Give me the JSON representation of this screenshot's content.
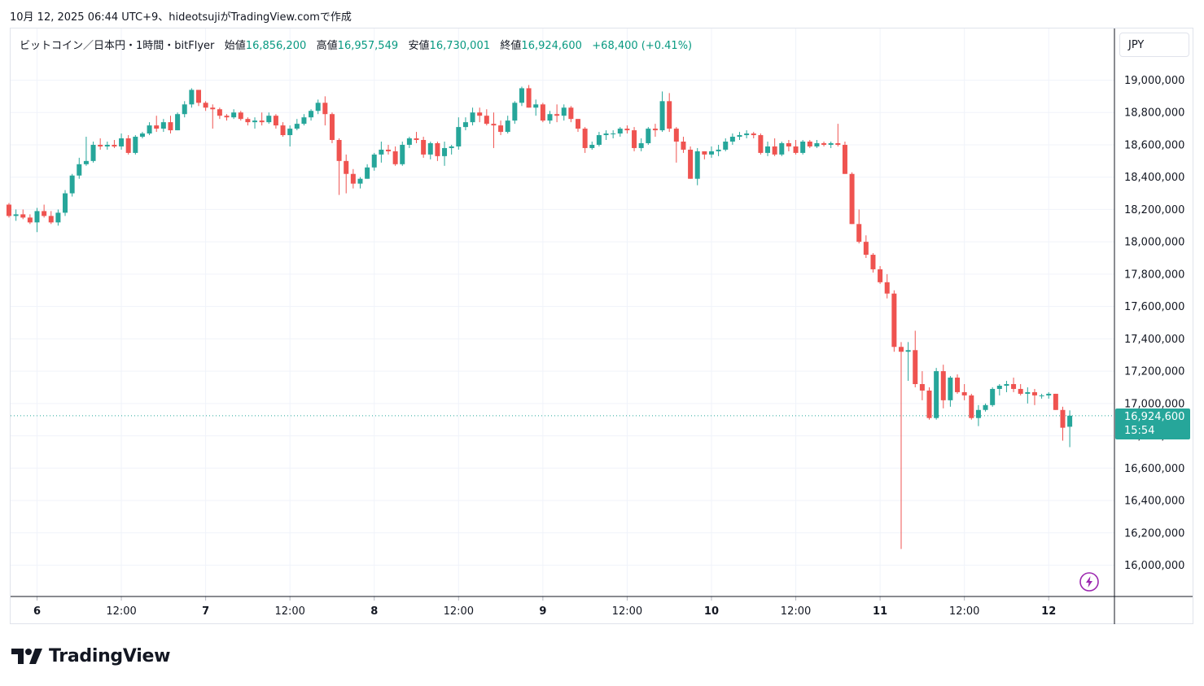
{
  "caption": "10月 12, 2025 06:44 UTC+9、hideotsujiがTradingView.comで作成",
  "legend": {
    "symbol": "ビットコイン／日本円・1時間・bitFlyer",
    "open_label": "始値",
    "open_value": "16,856,200",
    "high_label": "高値",
    "high_value": "16,957,549",
    "low_label": "安値",
    "low_value": "16,730,001",
    "close_label": "終値",
    "close_value": "16,924,600",
    "change": "+68,400 (+0.41%)"
  },
  "currency": "JPY",
  "price_badge": {
    "price": "16,924,600",
    "countdown": "15:54"
  },
  "brand": "TradingView",
  "colors": {
    "up": "#26a69a",
    "down": "#ef5350",
    "grid": "#f0f3fa",
    "text": "#131722",
    "legend_value": "#089981",
    "bolt": "#9c27b0"
  },
  "icons": {
    "logo": "tradingview-logo-icon",
    "bolt": "lightning-bolt-icon"
  },
  "chart_data": {
    "type": "candlestick",
    "timeframe": "1時間",
    "exchange": "bitFlyer",
    "currency": "JPY",
    "ylim": [
      15900000,
      19200000
    ],
    "y_ticks": [
      16000000,
      16200000,
      16400000,
      16600000,
      16800000,
      17000000,
      17200000,
      17400000,
      17600000,
      17800000,
      18000000,
      18200000,
      18400000,
      18600000,
      18800000,
      19000000
    ],
    "y_tick_labels": [
      "16,000,000",
      "16,200,000",
      "16,400,000",
      "16,600,000",
      "16,800,000",
      "17,000,000",
      "17,200,000",
      "17,400,000",
      "17,600,000",
      "17,800,000",
      "18,000,000",
      "18,200,000",
      "18,400,000",
      "18,600,000",
      "18,800,000",
      "19,000,000"
    ],
    "x_ticks": [
      {
        "hour": 0,
        "label": "6"
      },
      {
        "hour": 12,
        "label": "12:00"
      },
      {
        "hour": 24,
        "label": "7"
      },
      {
        "hour": 36,
        "label": "12:00"
      },
      {
        "hour": 48,
        "label": "8"
      },
      {
        "hour": 60,
        "label": "12:00"
      },
      {
        "hour": 72,
        "label": "9"
      },
      {
        "hour": 84,
        "label": "12:00"
      },
      {
        "hour": 96,
        "label": "10"
      },
      {
        "hour": 108,
        "label": "12:00"
      },
      {
        "hour": 120,
        "label": "11"
      },
      {
        "hour": 132,
        "label": "12:00"
      },
      {
        "hour": 144,
        "label": "12"
      }
    ],
    "first_candle_hour": -4,
    "last_price": 16924600,
    "candles": [
      [
        18230000,
        18240000,
        18150000,
        18160000
      ],
      [
        18160000,
        18200000,
        18130000,
        18170000
      ],
      [
        18170000,
        18200000,
        18140000,
        18150000
      ],
      [
        18150000,
        18170000,
        18110000,
        18120000
      ],
      [
        18120000,
        18210000,
        18060000,
        18190000
      ],
      [
        18190000,
        18230000,
        18150000,
        18160000
      ],
      [
        18160000,
        18190000,
        18110000,
        18120000
      ],
      [
        18120000,
        18200000,
        18100000,
        18180000
      ],
      [
        18180000,
        18320000,
        18160000,
        18300000
      ],
      [
        18300000,
        18420000,
        18280000,
        18410000
      ],
      [
        18410000,
        18520000,
        18390000,
        18480000
      ],
      [
        18480000,
        18650000,
        18470000,
        18500000
      ],
      [
        18500000,
        18620000,
        18490000,
        18600000
      ],
      [
        18600000,
        18640000,
        18570000,
        18590000
      ],
      [
        18590000,
        18620000,
        18570000,
        18600000
      ],
      [
        18600000,
        18630000,
        18580000,
        18590000
      ],
      [
        18590000,
        18670000,
        18570000,
        18640000
      ],
      [
        18640000,
        18660000,
        18540000,
        18550000
      ],
      [
        18550000,
        18660000,
        18540000,
        18650000
      ],
      [
        18650000,
        18680000,
        18640000,
        18670000
      ],
      [
        18670000,
        18740000,
        18660000,
        18720000
      ],
      [
        18720000,
        18780000,
        18680000,
        18700000
      ],
      [
        18700000,
        18760000,
        18680000,
        18740000
      ],
      [
        18740000,
        18780000,
        18670000,
        18690000
      ],
      [
        18690000,
        18800000,
        18690000,
        18790000
      ],
      [
        18790000,
        18870000,
        18770000,
        18850000
      ],
      [
        18850000,
        18950000,
        18830000,
        18940000
      ],
      [
        18940000,
        18930000,
        18840000,
        18860000
      ],
      [
        18860000,
        18870000,
        18810000,
        18830000
      ],
      [
        18830000,
        18850000,
        18700000,
        18820000
      ],
      [
        18820000,
        18830000,
        18760000,
        18780000
      ],
      [
        18780000,
        18790000,
        18750000,
        18770000
      ],
      [
        18770000,
        18820000,
        18760000,
        18800000
      ],
      [
        18800000,
        18810000,
        18750000,
        18760000
      ],
      [
        18760000,
        18770000,
        18720000,
        18740000
      ],
      [
        18740000,
        18770000,
        18700000,
        18750000
      ],
      [
        18750000,
        18800000,
        18720000,
        18740000
      ],
      [
        18740000,
        18800000,
        18730000,
        18780000
      ],
      [
        18780000,
        18790000,
        18700000,
        18720000
      ],
      [
        18720000,
        18740000,
        18650000,
        18660000
      ],
      [
        18660000,
        18720000,
        18590000,
        18700000
      ],
      [
        18700000,
        18760000,
        18690000,
        18730000
      ],
      [
        18730000,
        18790000,
        18720000,
        18770000
      ],
      [
        18770000,
        18820000,
        18750000,
        18810000
      ],
      [
        18810000,
        18880000,
        18790000,
        18860000
      ],
      [
        18860000,
        18900000,
        18720000,
        18790000
      ],
      [
        18790000,
        18800000,
        18610000,
        18630000
      ],
      [
        18630000,
        18640000,
        18290000,
        18500000
      ],
      [
        18500000,
        18540000,
        18300000,
        18420000
      ],
      [
        18420000,
        18450000,
        18330000,
        18360000
      ],
      [
        18360000,
        18400000,
        18330000,
        18390000
      ],
      [
        18390000,
        18480000,
        18390000,
        18460000
      ],
      [
        18460000,
        18550000,
        18440000,
        18540000
      ],
      [
        18540000,
        18620000,
        18490000,
        18570000
      ],
      [
        18570000,
        18600000,
        18540000,
        18560000
      ],
      [
        18560000,
        18590000,
        18470000,
        18480000
      ],
      [
        18480000,
        18620000,
        18470000,
        18600000
      ],
      [
        18600000,
        18650000,
        18580000,
        18640000
      ],
      [
        18640000,
        18680000,
        18610000,
        18630000
      ],
      [
        18630000,
        18650000,
        18520000,
        18540000
      ],
      [
        18540000,
        18620000,
        18510000,
        18610000
      ],
      [
        18610000,
        18620000,
        18500000,
        18530000
      ],
      [
        18530000,
        18620000,
        18470000,
        18580000
      ],
      [
        18580000,
        18600000,
        18540000,
        18590000
      ],
      [
        18590000,
        18770000,
        18570000,
        18710000
      ],
      [
        18710000,
        18770000,
        18690000,
        18740000
      ],
      [
        18740000,
        18830000,
        18720000,
        18800000
      ],
      [
        18800000,
        18830000,
        18740000,
        18780000
      ],
      [
        18780000,
        18820000,
        18720000,
        18730000
      ],
      [
        18730000,
        18800000,
        18580000,
        18720000
      ],
      [
        18720000,
        18750000,
        18660000,
        18680000
      ],
      [
        18680000,
        18780000,
        18670000,
        18750000
      ],
      [
        18750000,
        18870000,
        18730000,
        18860000
      ],
      [
        18860000,
        18960000,
        18840000,
        18950000
      ],
      [
        18950000,
        18970000,
        18830000,
        18830000
      ],
      [
        18830000,
        18880000,
        18780000,
        18850000
      ],
      [
        18850000,
        18860000,
        18740000,
        18750000
      ],
      [
        18750000,
        18810000,
        18730000,
        18790000
      ],
      [
        18790000,
        18850000,
        18740000,
        18780000
      ],
      [
        18780000,
        18850000,
        18750000,
        18830000
      ],
      [
        18830000,
        18840000,
        18740000,
        18760000
      ],
      [
        18760000,
        18760000,
        18680000,
        18700000
      ],
      [
        18700000,
        18710000,
        18550000,
        18580000
      ],
      [
        18580000,
        18620000,
        18570000,
        18600000
      ],
      [
        18600000,
        18680000,
        18590000,
        18660000
      ],
      [
        18660000,
        18690000,
        18630000,
        18670000
      ],
      [
        18670000,
        18690000,
        18640000,
        18670000
      ],
      [
        18670000,
        18710000,
        18650000,
        18700000
      ],
      [
        18700000,
        18720000,
        18670000,
        18690000
      ],
      [
        18690000,
        18710000,
        18560000,
        18580000
      ],
      [
        18580000,
        18640000,
        18560000,
        18610000
      ],
      [
        18610000,
        18710000,
        18600000,
        18700000
      ],
      [
        18700000,
        18730000,
        18650000,
        18690000
      ],
      [
        18690000,
        18930000,
        18680000,
        18870000
      ],
      [
        18870000,
        18920000,
        18680000,
        18700000
      ],
      [
        18700000,
        18710000,
        18490000,
        18620000
      ],
      [
        18620000,
        18650000,
        18550000,
        18570000
      ],
      [
        18570000,
        18590000,
        18390000,
        18390000
      ],
      [
        18390000,
        18580000,
        18350000,
        18560000
      ],
      [
        18560000,
        18560000,
        18510000,
        18540000
      ],
      [
        18540000,
        18590000,
        18520000,
        18560000
      ],
      [
        18560000,
        18600000,
        18530000,
        18570000
      ],
      [
        18570000,
        18640000,
        18560000,
        18620000
      ],
      [
        18620000,
        18670000,
        18600000,
        18650000
      ],
      [
        18650000,
        18680000,
        18630000,
        18660000
      ],
      [
        18660000,
        18690000,
        18640000,
        18670000
      ],
      [
        18670000,
        18680000,
        18640000,
        18660000
      ],
      [
        18660000,
        18670000,
        18540000,
        18550000
      ],
      [
        18550000,
        18620000,
        18530000,
        18590000
      ],
      [
        18590000,
        18640000,
        18530000,
        18540000
      ],
      [
        18540000,
        18620000,
        18530000,
        18610000
      ],
      [
        18610000,
        18630000,
        18560000,
        18590000
      ],
      [
        18590000,
        18630000,
        18540000,
        18550000
      ],
      [
        18550000,
        18630000,
        18540000,
        18620000
      ],
      [
        18620000,
        18630000,
        18580000,
        18590000
      ],
      [
        18590000,
        18630000,
        18580000,
        18610000
      ],
      [
        18610000,
        18620000,
        18590000,
        18600000
      ],
      [
        18600000,
        18620000,
        18580000,
        18610000
      ],
      [
        18610000,
        18730000,
        18590000,
        18600000
      ],
      [
        18600000,
        18620000,
        18420000,
        18420000
      ],
      [
        18420000,
        18430000,
        18110000,
        18110000
      ],
      [
        18110000,
        18200000,
        17990000,
        18000000
      ],
      [
        18000000,
        18040000,
        17900000,
        17920000
      ],
      [
        17920000,
        17930000,
        17810000,
        17830000
      ],
      [
        17830000,
        17850000,
        17740000,
        17750000
      ],
      [
        17750000,
        17800000,
        17650000,
        17680000
      ],
      [
        17680000,
        17700000,
        17320000,
        17350000
      ],
      [
        17350000,
        17380000,
        16100000,
        17320000
      ],
      [
        17320000,
        17380000,
        17140000,
        17330000
      ],
      [
        17330000,
        17450000,
        17100000,
        17120000
      ],
      [
        17120000,
        17200000,
        17020000,
        17080000
      ],
      [
        17080000,
        17100000,
        16900000,
        16910000
      ],
      [
        16910000,
        17220000,
        16900000,
        17200000
      ],
      [
        17200000,
        17240000,
        16970000,
        17020000
      ],
      [
        17020000,
        17170000,
        16980000,
        17160000
      ],
      [
        17160000,
        17180000,
        17060000,
        17070000
      ],
      [
        17070000,
        17120000,
        17020000,
        17050000
      ],
      [
        17050000,
        17060000,
        16900000,
        16910000
      ],
      [
        16910000,
        16990000,
        16860000,
        16960000
      ],
      [
        16960000,
        17000000,
        16950000,
        16990000
      ],
      [
        16990000,
        17100000,
        16980000,
        17090000
      ],
      [
        17090000,
        17120000,
        17050000,
        17110000
      ],
      [
        17110000,
        17140000,
        17070000,
        17120000
      ],
      [
        17120000,
        17160000,
        17070000,
        17090000
      ],
      [
        17090000,
        17120000,
        17050000,
        17060000
      ],
      [
        17060000,
        17100000,
        17000000,
        17070000
      ],
      [
        17070000,
        17090000,
        16990000,
        17050000
      ],
      [
        17050000,
        17060000,
        17030000,
        17050000
      ],
      [
        17050000,
        17070000,
        17030000,
        17060000
      ],
      [
        17060000,
        17060000,
        16960000,
        16960000
      ],
      [
        16960000,
        16980000,
        16770000,
        16850000
      ],
      [
        16856200,
        16957549,
        16730001,
        16924600
      ]
    ]
  }
}
